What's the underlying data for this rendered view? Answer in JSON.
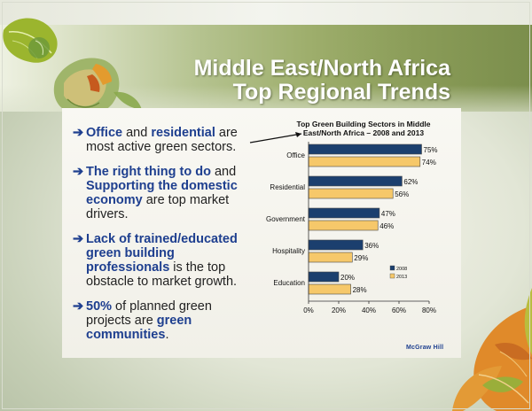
{
  "title": {
    "line1": "Middle East/North Africa",
    "line2": "Top Regional Trends"
  },
  "bullets": [
    {
      "parts": [
        {
          "text": "Office",
          "bold": true
        },
        {
          "text": " and ",
          "bold": false
        },
        {
          "text": "residential",
          "bold": true
        },
        {
          "text": " are most active green sectors.",
          "bold": false
        }
      ]
    },
    {
      "parts": [
        {
          "text": "The right thing to do",
          "bold": true
        },
        {
          "text": " and ",
          "bold": false
        },
        {
          "text": "Supporting the domestic economy",
          "bold": true
        },
        {
          "text": " are top market drivers.",
          "bold": false
        }
      ]
    },
    {
      "parts": [
        {
          "text": "Lack of trained/educated green building professionals",
          "bold": true
        },
        {
          "text": " is the top obstacle to market growth.",
          "bold": false
        }
      ]
    },
    {
      "parts": [
        {
          "text": "50%",
          "bold": true
        },
        {
          "text": " of planned green projects are ",
          "bold": false
        },
        {
          "text": "green communities",
          "bold": true
        },
        {
          "text": ".",
          "bold": false
        }
      ]
    }
  ],
  "chart_data": {
    "type": "bar",
    "orientation": "horizontal",
    "title_line1": "Top Green Building Sectors in Middle",
    "title_line2": "East/North Africa – 2008 and 2013",
    "categories": [
      "Office",
      "Residential",
      "Government",
      "Hospitality",
      "Education"
    ],
    "series": [
      {
        "name": "2008",
        "values": [
          75,
          62,
          47,
          36,
          20
        ],
        "color": "#1b3f6e"
      },
      {
        "name": "2013",
        "values": [
          74,
          56,
          46,
          29,
          28
        ],
        "color": "#f6c86a"
      }
    ],
    "value_suffix": "%",
    "xlim": [
      0,
      80
    ],
    "ticks": [
      "0%",
      "20%",
      "40%",
      "60%",
      "80%"
    ],
    "legend": "bottom-right",
    "grid": false
  },
  "footer": {
    "logo_text": "McGraw Hill"
  },
  "colors": {
    "accent_blue": "#1e3f8f",
    "bar_2008": "#1b3f6e",
    "bar_2013": "#f6c86a"
  }
}
